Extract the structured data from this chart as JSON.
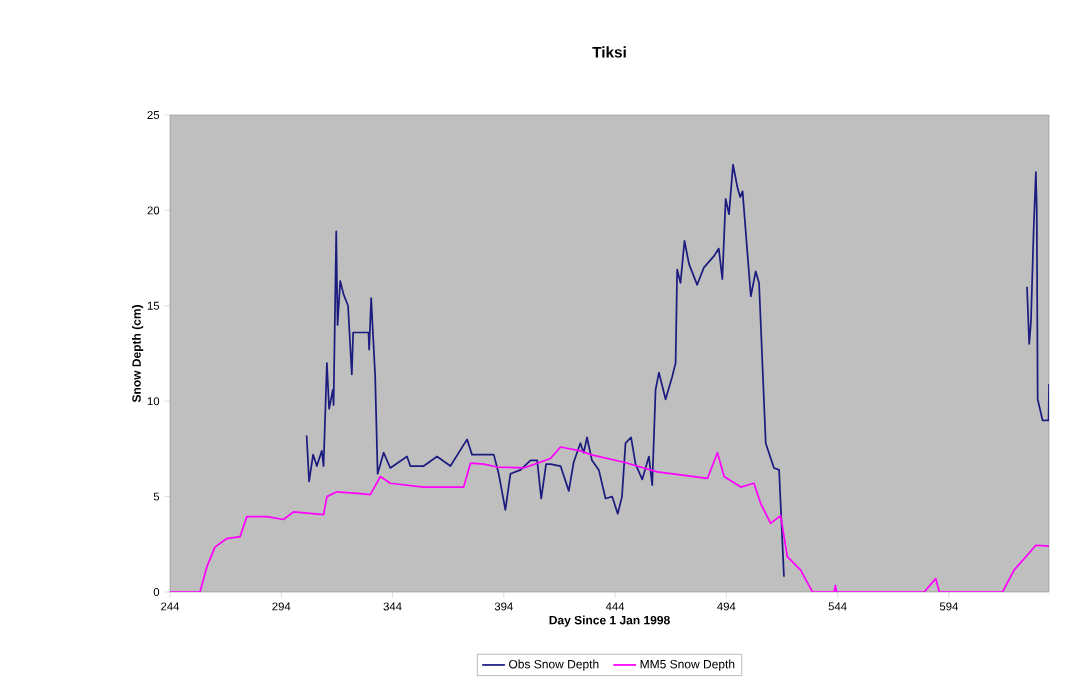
{
  "chart_data": {
    "type": "line",
    "title": "Tiksi",
    "xlabel": "Day Since 1 Jan 1998",
    "ylabel": "Snow Depth (cm)",
    "xlim": [
      244,
      639
    ],
    "ylim": [
      0,
      25
    ],
    "xticks": [
      244,
      294,
      344,
      394,
      444,
      494,
      544,
      594
    ],
    "yticks": [
      0,
      5,
      10,
      15,
      20,
      25
    ],
    "grid": false,
    "legend": "bottom",
    "marker": "none",
    "line_style": "solid",
    "series": [
      {
        "name": "Obs Snow Depth",
        "color": "#1c1c80",
        "x": [
          305.4,
          306.5,
          308.3,
          310,
          312.2,
          313,
          314.5,
          315.5,
          317.2,
          317.5,
          318.7,
          319.3,
          320.5,
          322,
          324,
          325.7,
          326.3,
          333.2,
          333.5,
          334.4,
          335,
          336.2,
          337.3,
          340,
          343,
          350.5,
          352,
          358,
          364,
          370,
          377.5,
          379.7,
          389.5,
          391.7,
          394.7,
          397,
          401.5,
          406,
          409,
          410.8,
          413,
          415,
          419.5,
          423.2,
          425.4,
          428.4,
          429.9,
          431.4,
          433.6,
          436.7,
          439.7,
          442.7,
          445.2,
          447.1,
          448.7,
          451.2,
          453.2,
          456.2,
          459.2,
          460.7,
          462.2,
          463.7,
          466.7,
          469.7,
          471.2,
          471.9,
          473.4,
          475.2,
          477.2,
          480.9,
          483.9,
          488.4,
          490.6,
          492.2,
          493.7,
          495.2,
          497,
          499,
          500.2,
          501.3,
          505,
          507.2,
          508.7,
          511.7,
          515.4,
          517.7,
          519.9,
          575,
          629.1,
          630.1,
          630.9,
          632.1,
          633.1,
          633.5,
          633.9,
          636.1,
          638.8,
          639
        ],
        "values": [
          8.2,
          5.8,
          7.2,
          6.6,
          7.4,
          6.6,
          12.0,
          9.6,
          10.6,
          9.8,
          18.9,
          14.0,
          16.3,
          15.6,
          15.0,
          11.4,
          13.6,
          13.6,
          12.7,
          15.4,
          14.0,
          11.3,
          6.2,
          7.3,
          6.5,
          7.1,
          6.6,
          6.6,
          7.1,
          6.6,
          8.0,
          7.2,
          7.2,
          6.2,
          4.3,
          6.2,
          6.4,
          6.9,
          6.9,
          4.9,
          6.7,
          6.7,
          6.6,
          5.3,
          6.8,
          7.8,
          7.3,
          8.1,
          6.9,
          6.4,
          4.9,
          5.0,
          4.1,
          5.0,
          7.8,
          8.1,
          6.7,
          5.9,
          7.1,
          5.6,
          10.6,
          11.5,
          10.1,
          11.3,
          12.0,
          16.9,
          16.2,
          18.4,
          17.2,
          16.1,
          17.0,
          17.6,
          18.0,
          16.4,
          20.6,
          19.8,
          22.4,
          21.2,
          20.7,
          21.0,
          15.5,
          16.8,
          16.2,
          7.8,
          6.5,
          6.4,
          0.8,
          null,
          16.0,
          13.0,
          14.2,
          19.0,
          22.0,
          20.0,
          10.1,
          9.0,
          9.0,
          10.9
        ]
      },
      {
        "name": "MM5 Snow Depth",
        "color": "#ff00ff",
        "x": [
          244,
          257.5,
          260.5,
          264.2,
          269.5,
          275.5,
          278.5,
          287.5,
          295,
          299.5,
          313,
          314.5,
          319,
          329.5,
          334,
          338.5,
          343,
          358,
          376,
          379,
          385,
          391,
          403,
          415,
          419.5,
          428.4,
          433,
          448,
          463,
          485.5,
          490,
          493,
          500.5,
          506.4,
          509.4,
          513.9,
          518.4,
          521.4,
          527.4,
          532.7,
          542.5,
          543,
          543.5,
          582.9,
          588.1,
          589.7,
          618.1,
          623.3,
          629.4,
          633.1,
          639
        ],
        "values": [
          0,
          0,
          1.3,
          2.35,
          2.8,
          2.9,
          3.95,
          3.95,
          3.8,
          4.2,
          4.05,
          5.0,
          5.25,
          5.15,
          5.1,
          6.05,
          5.7,
          5.5,
          5.5,
          6.75,
          6.7,
          6.55,
          6.5,
          7.0,
          7.6,
          7.4,
          7.2,
          6.8,
          6.3,
          5.95,
          7.3,
          6.05,
          5.5,
          5.7,
          4.65,
          3.6,
          4.0,
          1.85,
          1.15,
          0,
          0,
          0.35,
          0,
          0,
          0.7,
          0,
          0,
          1.15,
          1.95,
          2.45,
          2.4
        ]
      }
    ]
  }
}
